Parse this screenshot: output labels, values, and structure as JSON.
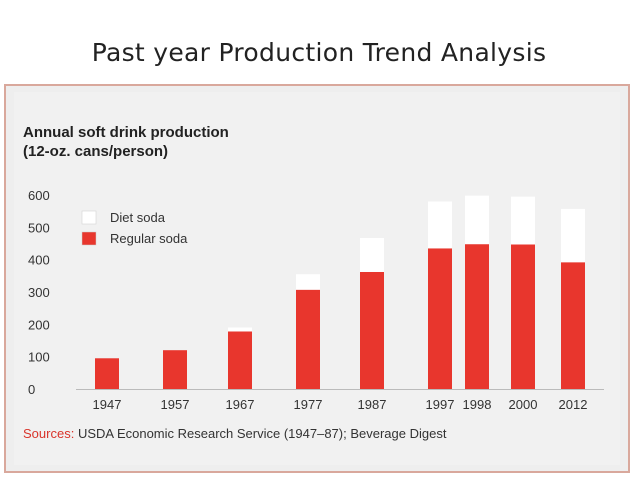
{
  "slide": {
    "title": "Past year Production Trend Analysis"
  },
  "chart_data": {
    "type": "bar",
    "stacked": true,
    "title": "Annual soft drink production",
    "subtitle": "(12-oz. cans/person)",
    "categories": [
      "1947",
      "1957",
      "1967",
      "1977",
      "1987",
      "1997",
      "1998",
      "2000",
      "2012"
    ],
    "series": [
      {
        "name": "Regular soda",
        "color": "#e8362d",
        "values": [
          95,
          120,
          178,
          307,
          362,
          435,
          448,
          447,
          392
        ]
      },
      {
        "name": "Diet soda",
        "color": "#ffffff",
        "values": [
          0,
          0,
          12,
          48,
          105,
          145,
          150,
          148,
          165
        ]
      }
    ],
    "yticks": [
      0,
      100,
      200,
      300,
      400,
      500,
      600
    ],
    "ylim": [
      0,
      600
    ],
    "legend": {
      "position": "top-left",
      "order": [
        "Diet soda",
        "Regular soda"
      ]
    },
    "source": {
      "label": "Sources:",
      "text": "USDA Economic Research Service (1947–87); Beverage Digest"
    }
  }
}
